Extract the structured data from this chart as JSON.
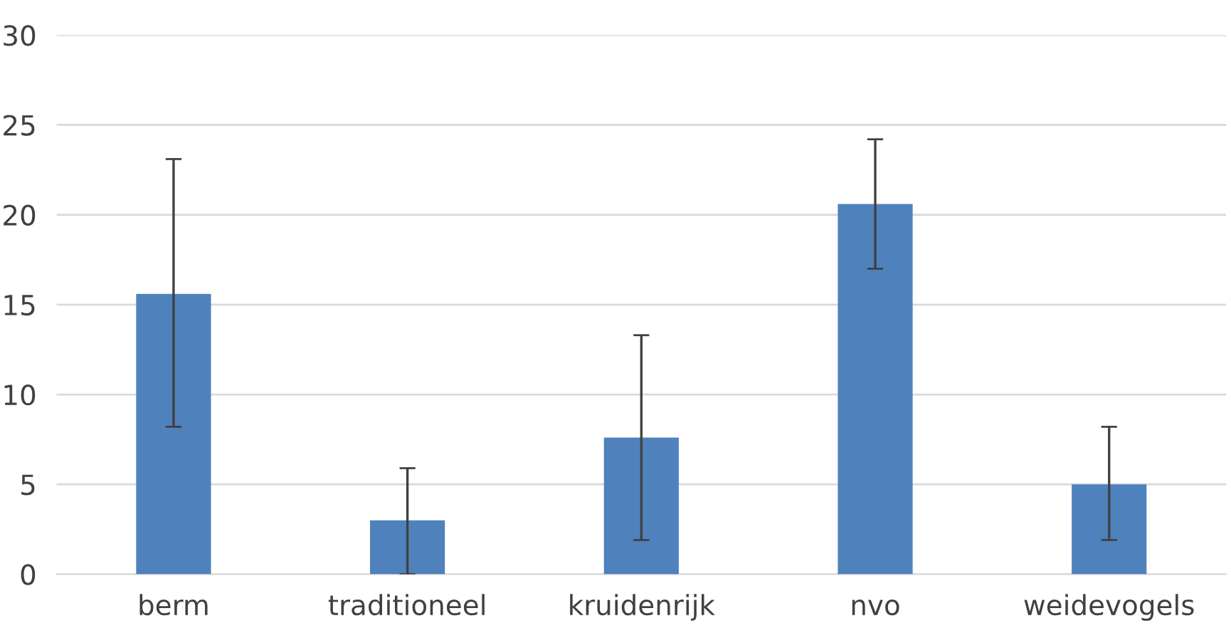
{
  "chart_data": {
    "type": "bar",
    "categories": [
      "berm",
      "traditioneel",
      "kruidenrijk",
      "nvo",
      "weidevogels"
    ],
    "values": [
      15.6,
      3.0,
      7.6,
      20.6,
      5.0
    ],
    "errors": [
      [
        8.2,
        23.1
      ],
      [
        0.0,
        5.9
      ],
      [
        1.9,
        13.3
      ],
      [
        17.0,
        24.2
      ],
      [
        1.9,
        8.2
      ]
    ],
    "color": "#4f81bd",
    "ylim": [
      0,
      30
    ],
    "yticks": [
      0,
      5,
      10,
      15,
      20,
      25,
      30
    ],
    "grid": "y"
  }
}
